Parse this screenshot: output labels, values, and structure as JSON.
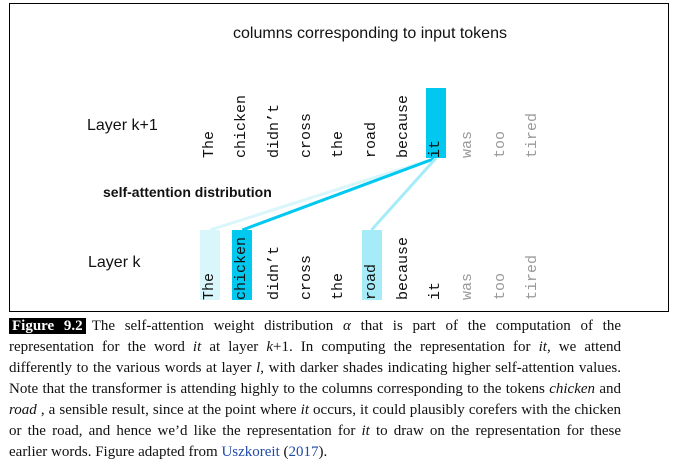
{
  "figure": {
    "title": "columns corresponding to input tokens",
    "layer_top_label": "Layer k+1",
    "layer_bottom_label": "Layer k",
    "attention_label": "self-attention distribution",
    "tokens": [
      "The",
      "chicken",
      "didn’t",
      "cross",
      "the",
      "road",
      "because",
      "it",
      "was",
      "too",
      "tired"
    ],
    "token_colors": {
      "normal": "#111111",
      "faded": "#9a9a9a",
      "query_highlight": "#00c8ef",
      "strong_attention": "#00c8ef",
      "medium_attention": "#a6ecf8",
      "weak_attention": "#d9f6fb"
    },
    "top_row_highlight_token": "it",
    "bottom_row_highlights": [
      {
        "token": "The",
        "level": "weak_attention"
      },
      {
        "token": "chicken",
        "level": "strong_attention"
      },
      {
        "token": "road",
        "level": "medium_attention"
      }
    ]
  },
  "caption": {
    "label": "Figure 9.2",
    "p1": "The self-attention weight distribution ",
    "alpha": "α",
    "p2": " that is part of the computation of the representation for the word ",
    "w_it1": "it",
    "p3": " at layer ",
    "k_plus_1": "k",
    "p3b": "+1. In computing the representation for ",
    "w_it2": "it,",
    "p4": " we attend differently to the various words at layer ",
    "layer_l": "l",
    "p5": ", with darker shades indicating higher self-attention values. Note that the transformer is attending highly to the columns corresponding to the tokens ",
    "w_chicken": "chicken",
    "p6": " and ",
    "w_road": "road",
    "p7": " , a sensible result, since at the point where ",
    "w_it3": "it",
    "p8": " occurs, it could plausibly corefers with the chicken or the road, and hence we’d like the representation for ",
    "w_it4": "it",
    "p9": " to draw on the representation for these earlier words. Figure adapted from ",
    "cite_author": "Uszkoreit",
    "cite_open": " (",
    "cite_year": "2017",
    "cite_close": ")."
  }
}
